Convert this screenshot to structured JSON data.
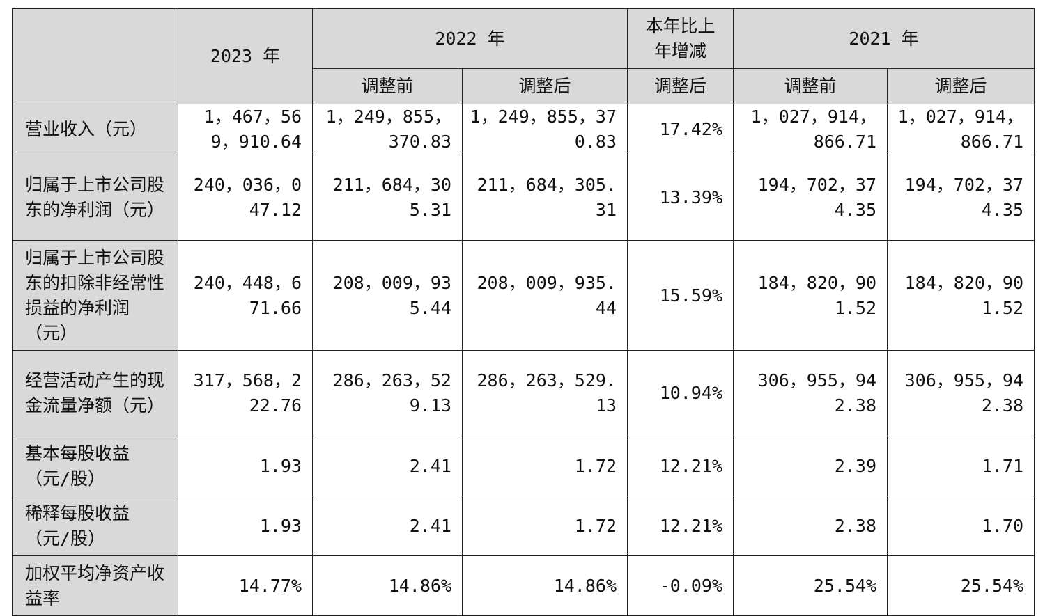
{
  "table": {
    "header": {
      "year_2023": "2023 年",
      "year_2022": "2022 年",
      "change": "本年比上年增减",
      "year_2021": "2021 年",
      "before_adj_2022": "调整前",
      "after_adj_2022": "调整后",
      "after_adj_change": "调整后",
      "before_adj_2021": "调整前",
      "after_adj_2021": "调整后"
    },
    "rows": [
      {
        "label": "营业收入（元）",
        "v2023": "1，467，569，910.64",
        "v2022_before": "1，249，855，370.83",
        "v2022_after": "1，249，855，370.83",
        "change": "17.42%",
        "v2021_before": "1，027，914，866.71",
        "v2021_after": "1，027，914，866.71"
      },
      {
        "label": "归属于上市公司股东的净利润（元）",
        "v2023": "240，036，047.12",
        "v2022_before": "211，684，305.31",
        "v2022_after": "211，684，305.31",
        "change": "13.39%",
        "v2021_before": "194，702，374.35",
        "v2021_after": "194，702，374.35"
      },
      {
        "label": "归属于上市公司股东的扣除非经常性损益的净利润（元）",
        "v2023": "240，448，671.66",
        "v2022_before": "208，009，935.44",
        "v2022_after": "208，009，935.44",
        "change": "15.59%",
        "v2021_before": "184，820，901.52",
        "v2021_after": "184，820，901.52"
      },
      {
        "label": "经营活动产生的现金流量净额（元）",
        "v2023": "317，568，222.76",
        "v2022_before": "286，263，529.13",
        "v2022_after": "286，263，529.13",
        "change": "10.94%",
        "v2021_before": "306，955，942.38",
        "v2021_after": "306，955，942.38"
      },
      {
        "label": "基本每股收益（元/股）",
        "v2023": "1.93",
        "v2022_before": "2.41",
        "v2022_after": "1.72",
        "change": "12.21%",
        "v2021_before": "2.39",
        "v2021_after": "1.71"
      },
      {
        "label": "稀释每股收益（元/股）",
        "v2023": "1.93",
        "v2022_before": "2.41",
        "v2022_after": "1.72",
        "change": "12.21%",
        "v2021_before": "2.38",
        "v2021_after": "1.70"
      },
      {
        "label": "加权平均净资产收益率",
        "v2023": "14.77%",
        "v2022_before": "14.86%",
        "v2022_after": "14.86%",
        "change": "-0.09%",
        "v2021_before": "25.54%",
        "v2021_after": "25.54%"
      }
    ]
  }
}
